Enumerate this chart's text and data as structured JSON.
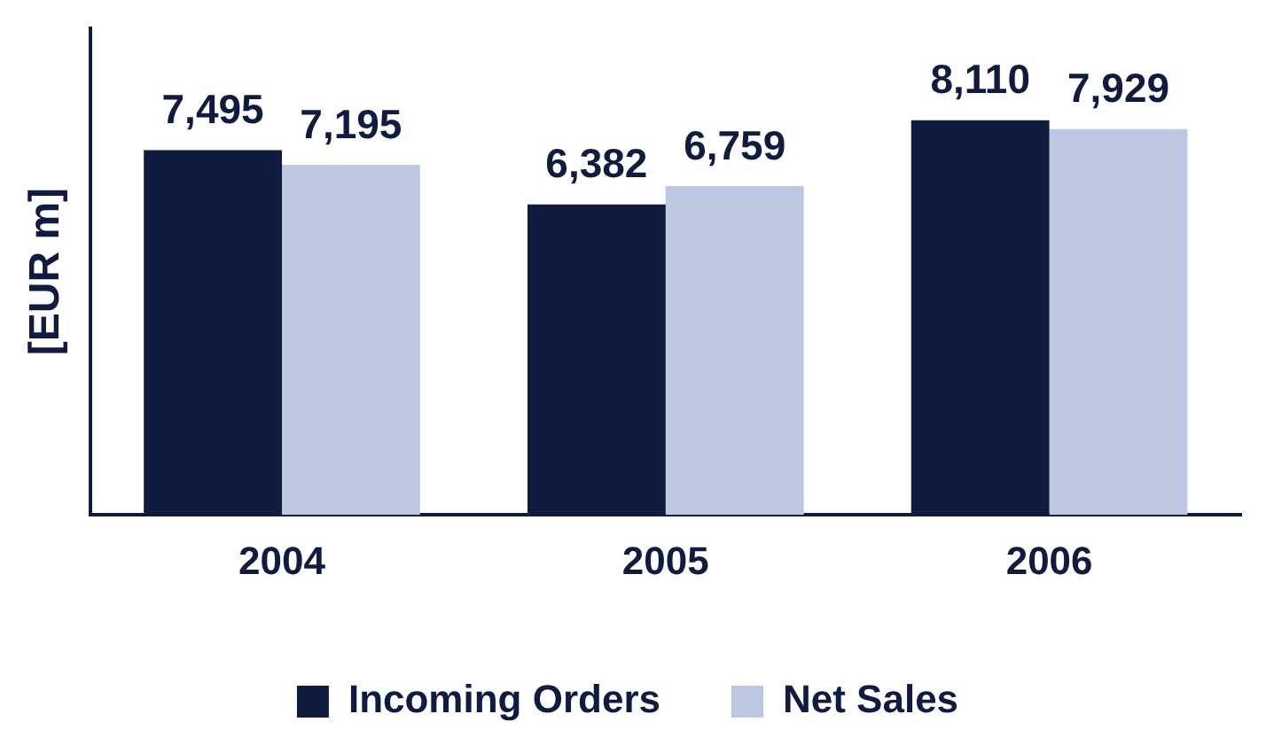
{
  "chart_data": {
    "type": "bar",
    "categories": [
      "2004",
      "2005",
      "2006"
    ],
    "series": [
      {
        "name": "Incoming Orders",
        "color": "#101c3f",
        "values": [
          7495,
          6382,
          8110
        ],
        "value_labels": [
          "7,495",
          "6,382",
          "8,110"
        ]
      },
      {
        "name": "Net Sales",
        "color": "#bcc8e2",
        "values": [
          7195,
          6759,
          7929
        ],
        "value_labels": [
          "7,195",
          "6,759",
          "7,929"
        ]
      }
    ],
    "ylabel": "[EUR m]",
    "tick_labels": "x",
    "legend": "bottom"
  }
}
